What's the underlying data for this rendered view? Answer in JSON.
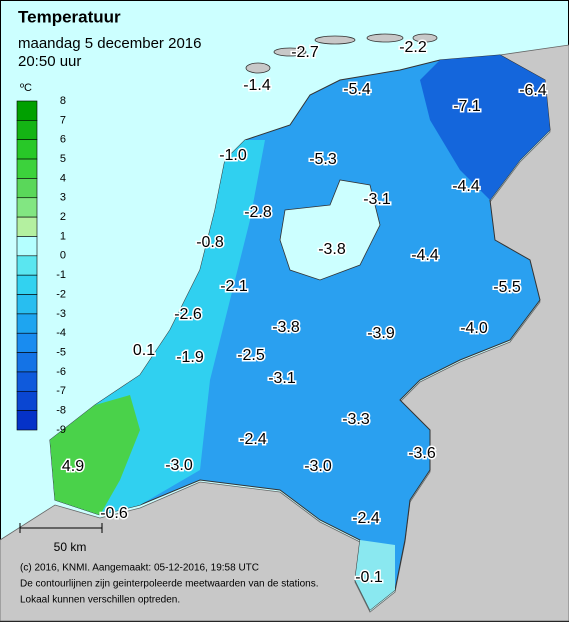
{
  "header": {
    "title": "Temperatuur",
    "date": "maandag 5 december 2016",
    "time": "20:50 uur"
  },
  "legend": {
    "unit": "ºC",
    "labels": [
      "8",
      "7",
      "6",
      "5",
      "4",
      "3",
      "2",
      "1",
      "0",
      "-1",
      "-2",
      "-3",
      "-4",
      "-5",
      "-6",
      "-7",
      "-8",
      "-9"
    ],
    "colors": [
      "#008a00",
      "#00a000",
      "#14b414",
      "#28c828",
      "#3cd23c",
      "#5ad75a",
      "#82e682",
      "#b4f0a0",
      "#b4ffff",
      "#5ae6f0",
      "#32d2f0",
      "#28bef0",
      "#1ea5f0",
      "#198cf0",
      "#1473e6",
      "#0f5adc",
      "#0a46d2",
      "#0532c8"
    ]
  },
  "stations": [
    "-2.7",
    "-2.2",
    "-1.4",
    "-5.4",
    "-7.1",
    "-6.4",
    "-1.0",
    "-5.3",
    "-4.4",
    "-3.1",
    "-2.8",
    "-0.8",
    "-3.8",
    "-4.4",
    "-5.5",
    "-2.1",
    "-2.6",
    "-3.8",
    "-3.9",
    "-4.0",
    "0.1",
    "-1.9",
    "-2.5",
    "-3.1",
    "-3.3",
    "-2.4",
    "-3.6",
    "4.9",
    "-3.0",
    "-3.0",
    "-0.6",
    "-2.4",
    "-0.1"
  ],
  "scale_bar": "50 km",
  "footer": [
    "(c) 2016, KNMI. Aangemaakt: 05-12-2016, 19:58 UTC",
    "De contourlijnen zijn geinterpoleerde meetwaarden van de stations.",
    "Lokaal kunnen verschillen optreden."
  ]
}
